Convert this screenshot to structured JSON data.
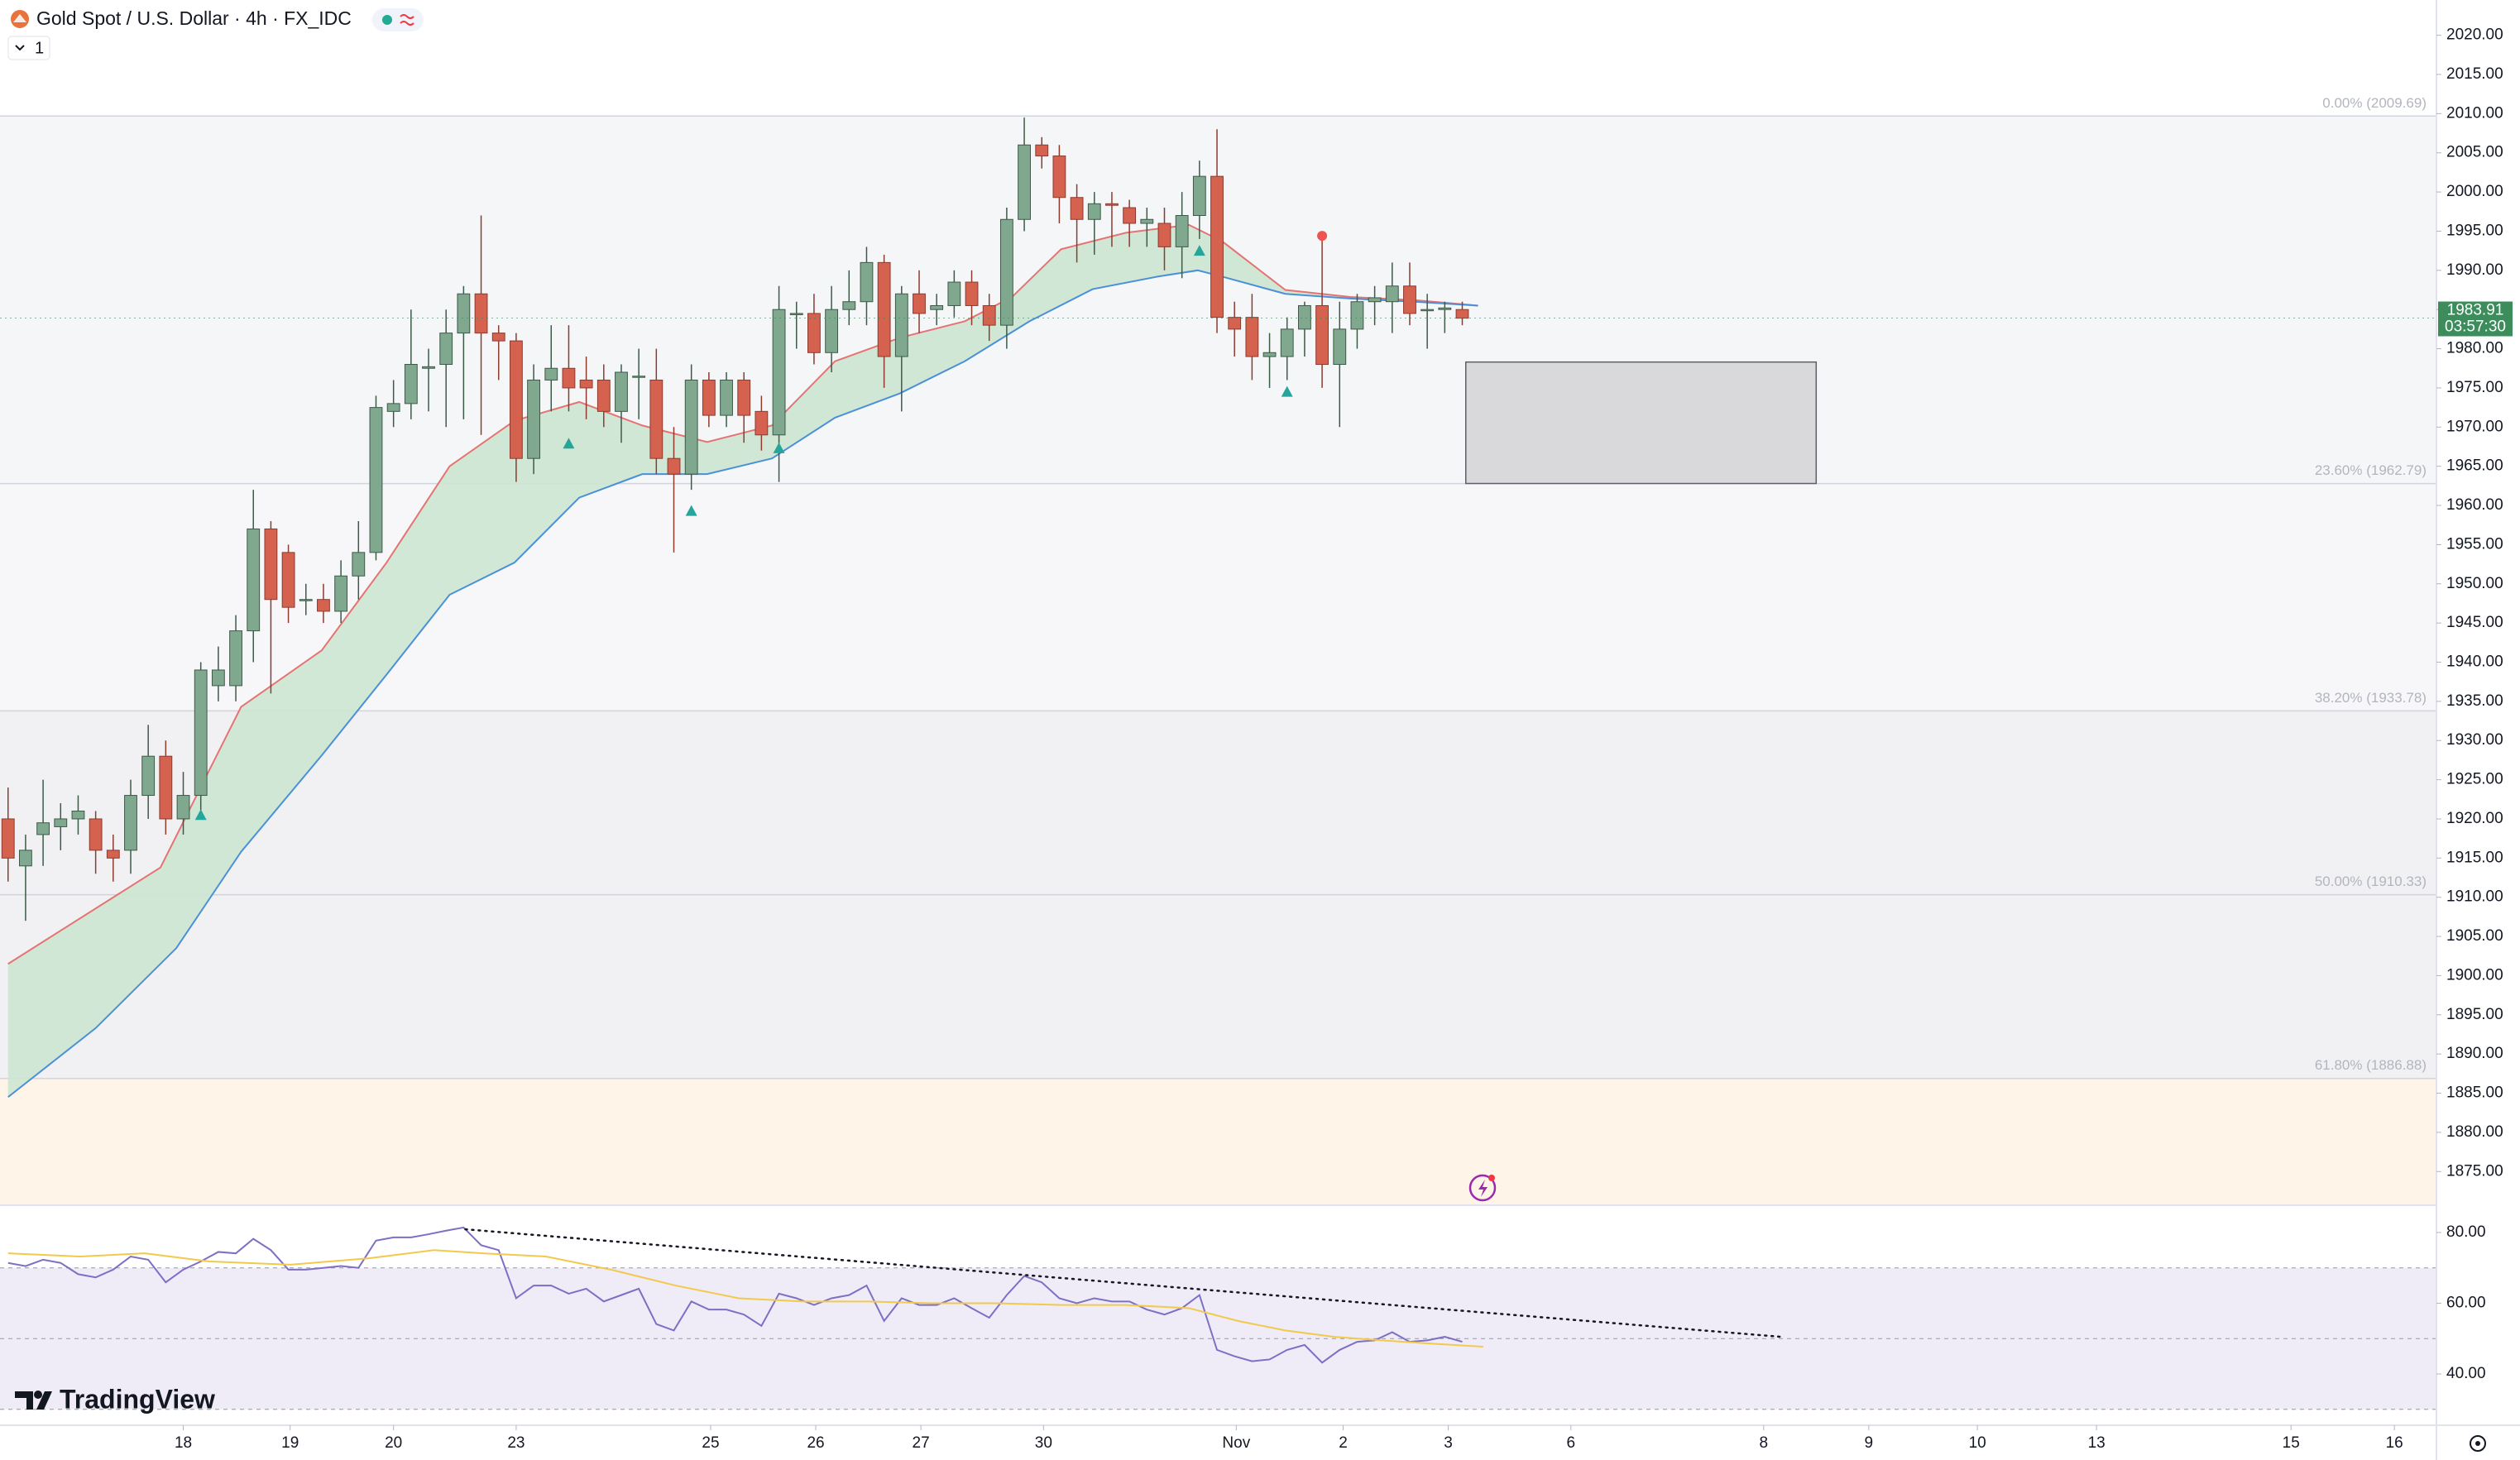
{
  "header": {
    "title": "Gold Spot / U.S. Dollar · 4h · FX_IDC",
    "interval_badge": "1",
    "brand": "TradingView"
  },
  "chart_data": [
    {
      "type": "candlestick",
      "up_color": "#7fa88f",
      "up_border": "#3d5a49",
      "down_color": "#d5624f",
      "down_border": "#8c3b2f",
      "open": [
        1920,
        1914,
        1918,
        1919,
        1920,
        1920,
        1916,
        1916,
        1923,
        1928,
        1920,
        1923,
        1937,
        1937,
        1944,
        1957,
        1954,
        1948,
        1948,
        1946.5,
        1951,
        1954,
        1972,
        1973,
        1977.5,
        1978,
        1982,
        1987,
        1982,
        1981,
        1966,
        1976,
        1977.5,
        1976,
        1976,
        1972,
        1976.5,
        1976,
        1966,
        1964,
        1976,
        1971.5,
        1976,
        1972,
        1969,
        1984.5,
        1984.5,
        1979.5,
        1985,
        1986,
        1991,
        1979,
        1987,
        1985,
        1985.5,
        1988.5,
        1985.5,
        1983,
        1996.5,
        2006,
        2004.6,
        1999.3,
        1996.5,
        1998.5,
        1998,
        1996,
        1996,
        1993,
        1997,
        2002,
        1984,
        1984,
        1979,
        1979,
        1982.5,
        1985.5,
        1978,
        1982.5,
        1986,
        1986,
        1988,
        1985,
        1985,
        1985
      ],
      "high": [
        1924,
        1918,
        1925,
        1922,
        1923,
        1921,
        1918,
        1925,
        1932,
        1930,
        1926,
        1940,
        1942,
        1946,
        1962,
        1958,
        1955,
        1950,
        1950,
        1953,
        1958,
        1974,
        1976,
        1985,
        1980,
        1985,
        1988,
        1997,
        1983,
        1982,
        1978,
        1983,
        1983,
        1979,
        1978,
        1978,
        1980,
        1980,
        1970,
        1978,
        1977,
        1977,
        1977,
        1974,
        1988,
        1986,
        1987,
        1988,
        1990,
        1993,
        1992,
        1988,
        1990,
        1987,
        1990,
        1990,
        1987,
        1998,
        2009.5,
        2007,
        2006,
        2001,
        2000,
        2000,
        1999,
        1998,
        1998,
        2000,
        2004,
        2008,
        1986,
        1987,
        1982,
        1984,
        1986,
        1994,
        1986,
        1987,
        1988,
        1991,
        1991,
        1987,
        1986,
        1986
      ],
      "low": [
        1912,
        1907,
        1914,
        1916,
        1918,
        1913,
        1912,
        1913,
        1920,
        1918,
        1918,
        1921,
        1935,
        1935,
        1940,
        1936,
        1945,
        1946,
        1945,
        1945,
        1948,
        1953,
        1970,
        1971,
        1972,
        1970,
        1971,
        1969,
        1976,
        1963,
        1964,
        1972,
        1972,
        1971,
        1970,
        1968,
        1971,
        1964,
        1954,
        1962,
        1970,
        1970,
        1968,
        1967,
        1963,
        1980,
        1978,
        1977,
        1983,
        1983,
        1975,
        1972,
        1982,
        1983,
        1984,
        1983,
        1981,
        1980,
        1995,
        2003,
        1996,
        1991,
        1992,
        1993,
        1993,
        1993,
        1990,
        1989,
        1994,
        1982,
        1979,
        1976,
        1975,
        1976,
        1979,
        1975,
        1970,
        1980,
        1983,
        1982,
        1983,
        1980,
        1982,
        1983
      ],
      "close": [
        1915,
        1916,
        1919.5,
        1920,
        1921,
        1916,
        1915,
        1923,
        1928,
        1920,
        1923,
        1939,
        1939,
        1944,
        1957,
        1948,
        1947,
        1948,
        1946.5,
        1951,
        1954,
        1972.5,
        1973,
        1978,
        1977.7,
        1982,
        1987,
        1982,
        1981,
        1966,
        1976,
        1977.5,
        1975,
        1975,
        1972,
        1977,
        1976.5,
        1966,
        1964,
        1976,
        1971.5,
        1976,
        1971.5,
        1969,
        1985,
        1984.5,
        1979.5,
        1985,
        1986,
        1991,
        1979,
        1987,
        1984.5,
        1985.5,
        1988.5,
        1985.5,
        1983,
        1996.5,
        2006,
        2004.6,
        1999.3,
        1996.5,
        1998.5,
        1998.3,
        1996,
        1996.5,
        1993,
        1997,
        2002,
        1984,
        1982.5,
        1979,
        1979.5,
        1982.5,
        1985.5,
        1978,
        1982.5,
        1986,
        1986.5,
        1988,
        1984.5,
        1985,
        1985.2,
        1983.9
      ],
      "xlim": [
        -0.46,
        138.6
      ],
      "ylim": [
        1870.7,
        2024.5
      ],
      "yticks": [
        {
          "value": 2020,
          "label": "2020.00"
        },
        {
          "value": 2015,
          "label": "2015.00"
        },
        {
          "value": 2010,
          "label": "2010.00"
        },
        {
          "value": 2005,
          "label": "2005.00"
        },
        {
          "value": 2000,
          "label": "2000.00"
        },
        {
          "value": 1995,
          "label": "1995.00"
        },
        {
          "value": 1990,
          "label": "1990.00"
        },
        {
          "value": 1985,
          "label": "1985.00"
        },
        {
          "value": 1980,
          "label": "1980.00"
        },
        {
          "value": 1975,
          "label": "1975.00"
        },
        {
          "value": 1970,
          "label": "1970.00"
        },
        {
          "value": 1965,
          "label": "1965.00"
        },
        {
          "value": 1960,
          "label": "1960.00"
        },
        {
          "value": 1955,
          "label": "1955.00"
        },
        {
          "value": 1950,
          "label": "1950.00"
        },
        {
          "value": 1945,
          "label": "1945.00"
        },
        {
          "value": 1940,
          "label": "1940.00"
        },
        {
          "value": 1935,
          "label": "1935.00"
        },
        {
          "value": 1930,
          "label": "1930.00"
        },
        {
          "value": 1925,
          "label": "1925.00"
        },
        {
          "value": 1920,
          "label": "1920.00"
        },
        {
          "value": 1915,
          "label": "1915.00"
        },
        {
          "value": 1910,
          "label": "1910.00"
        },
        {
          "value": 1905,
          "label": "1905.00"
        },
        {
          "value": 1900,
          "label": "1900.00"
        },
        {
          "value": 1895,
          "label": "1895.00"
        },
        {
          "value": 1890,
          "label": "1890.00"
        },
        {
          "value": 1885,
          "label": "1885.00"
        },
        {
          "value": 1880,
          "label": "1880.00"
        },
        {
          "value": 1875,
          "label": "1875.00"
        }
      ],
      "xticks": [
        {
          "value": 10.0,
          "label": "18"
        },
        {
          "value": 16.1,
          "label": "19"
        },
        {
          "value": 22.0,
          "label": "20"
        },
        {
          "value": 29.0,
          "label": "23"
        },
        {
          "value": 40.1,
          "label": "25"
        },
        {
          "value": 46.1,
          "label": "26"
        },
        {
          "value": 52.1,
          "label": "27"
        },
        {
          "value": 59.1,
          "label": "30"
        },
        {
          "value": 70.1,
          "label": "Nov"
        },
        {
          "value": 76.2,
          "label": "2"
        },
        {
          "value": 82.2,
          "label": "3"
        },
        {
          "value": 89.2,
          "label": "6"
        },
        {
          "value": 100.2,
          "label": "8"
        },
        {
          "value": 106.2,
          "label": "9"
        },
        {
          "value": 112.4,
          "label": "10"
        },
        {
          "value": 119.2,
          "label": "13"
        },
        {
          "value": 130.3,
          "label": "15"
        },
        {
          "value": 136.2,
          "label": "16"
        }
      ],
      "fib_levels": [
        {
          "value": 2009.69,
          "label": "0.00% (2009.69)",
          "color": "#f5f6f8"
        },
        {
          "value": 1962.79,
          "label": "23.60% (1962.79)",
          "color": "#f7f7f9"
        },
        {
          "value": 1933.78,
          "label": "38.20% (1933.78)",
          "color": "#f1f1f4"
        },
        {
          "value": 1910.33,
          "label": "50.00% (1910.33)",
          "color": "#f1f1f4"
        },
        {
          "value": 1886.88,
          "label": "61.80% (1886.88)",
          "color": "#fef4e7"
        }
      ],
      "overlays": [
        {
          "color": "#e57373",
          "x": [
            0,
            8.7,
            13.3,
            17.9,
            21.6,
            25.2,
            28.9,
            32.6,
            36.2,
            39.9,
            43.6,
            47.2,
            50.9,
            54.6,
            57.3,
            60.1,
            63.8,
            67.4,
            69.3,
            72.9,
            76.6,
            80.3,
            83.9
          ],
          "values": [
            1901.5,
            1913.8,
            1934.3,
            1941.5,
            1952.7,
            1965,
            1970.8,
            1973.2,
            1970.2,
            1968.1,
            1970.2,
            1978.4,
            1981.4,
            1983.5,
            1986.6,
            1992.7,
            1994.8,
            1995.8,
            1993.7,
            1987.5,
            1986.6,
            1986.2,
            1985.5
          ]
        },
        {
          "color": "#4a90d9",
          "x": [
            0,
            5,
            9.6,
            13.3,
            17.9,
            21.6,
            25.2,
            28.9,
            32.6,
            36.2,
            39.9,
            43.6,
            47.2,
            50.9,
            54.6,
            58.3,
            61.9,
            65.6,
            67.9,
            69.3,
            72.9,
            76.6,
            80.3,
            83.9
          ],
          "values": [
            1884.5,
            1893.3,
            1903.5,
            1915.8,
            1928.1,
            1938.4,
            1948.6,
            1952.7,
            1961,
            1964,
            1964,
            1966,
            1971.2,
            1974.3,
            1978.4,
            1983.5,
            1987.6,
            1989.2,
            1990,
            1989.2,
            1987,
            1986.4,
            1986,
            1985.5
          ]
        }
      ],
      "cloud_color": "#cde6d2",
      "signals": [
        {
          "x": 11,
          "y": 1920.5,
          "color": "#26a69a"
        },
        {
          "x": 32,
          "y": 1967.9,
          "color": "#26a69a"
        },
        {
          "x": 39,
          "y": 1959.3,
          "color": "#26a69a"
        },
        {
          "x": 44,
          "y": 1967.3,
          "color": "#26a69a"
        },
        {
          "x": 68,
          "y": 1992.5,
          "color": "#26a69a"
        },
        {
          "x": 73,
          "y": 1974.5,
          "color": "#26a69a"
        },
        {
          "x": 75,
          "y": 1994.4,
          "color": "#ef5350"
        }
      ],
      "zone": {
        "x": [
          83.2,
          103.2
        ],
        "y": [
          1962.8,
          1978.3
        ],
        "color": "#d9d9db"
      },
      "last_price": {
        "value": 1983.91,
        "label": "1983.91"
      },
      "countdown": "03:57:30",
      "last_color": "#3c8c5c"
    },
    {
      "type": "line",
      "xlim": [
        -0.46,
        138.6
      ],
      "ylim": [
        25.5,
        87.7
      ],
      "yticks": [
        {
          "value": 80,
          "label": "80.00"
        },
        {
          "value": 60,
          "label": "60.00"
        },
        {
          "value": 40,
          "label": "40.00"
        }
      ],
      "levels": [
        70,
        50,
        30
      ],
      "band_color": "#efecf8",
      "series": [
        {
          "color": "#7e6fc4",
          "values": [
            71.4,
            70.5,
            72.3,
            71.4,
            68.2,
            67.3,
            69.5,
            73.2,
            72.3,
            65.9,
            69.5,
            71.8,
            74.5,
            74.1,
            78.2,
            75.0,
            69.5,
            69.5,
            70.0,
            70.5,
            70.0,
            77.7,
            78.6,
            78.6,
            79.5,
            80.5,
            81.4,
            76.4,
            75.0,
            61.4,
            65.0,
            65.0,
            62.7,
            64.1,
            60.5,
            62.3,
            64.1,
            54.1,
            52.3,
            60.5,
            58.2,
            58.2,
            56.8,
            53.6,
            62.7,
            61.4,
            59.5,
            61.4,
            62.3,
            65.0,
            55.0,
            61.4,
            59.5,
            59.5,
            61.4,
            58.6,
            55.9,
            62.3,
            67.7,
            65.9,
            61.4,
            60.0,
            61.4,
            60.5,
            60.5,
            58.2,
            56.8,
            58.6,
            62.3,
            46.8,
            45.0,
            43.6,
            44.1,
            46.8,
            48.2,
            43.2,
            46.8,
            49.1,
            49.5,
            51.8,
            49.1,
            49.5,
            50.5,
            49.1
          ]
        },
        {
          "color": "#f2c94c",
          "x": [
            0,
            4.1,
            7.8,
            11.5,
            16.1,
            20.6,
            24.3,
            27.1,
            30.7,
            34.4,
            38.1,
            41.7,
            45.4,
            49.1,
            52.8,
            56.4,
            60.1,
            63.8,
            67.4,
            70.2,
            72.9,
            75.7,
            78.4,
            81.2,
            84.2
          ],
          "values": [
            74.1,
            73.2,
            74.1,
            71.8,
            70.9,
            72.7,
            75.0,
            74.1,
            73.2,
            69.5,
            65.0,
            61.4,
            60.5,
            60.5,
            60.0,
            60.0,
            59.5,
            59.5,
            58.6,
            55.0,
            52.3,
            50.5,
            49.5,
            48.6,
            47.7
          ]
        }
      ],
      "trendline": {
        "x": [
          26.1,
          101.2
        ],
        "values": [
          80.9,
          50.5
        ],
        "color": "#131722"
      }
    }
  ]
}
